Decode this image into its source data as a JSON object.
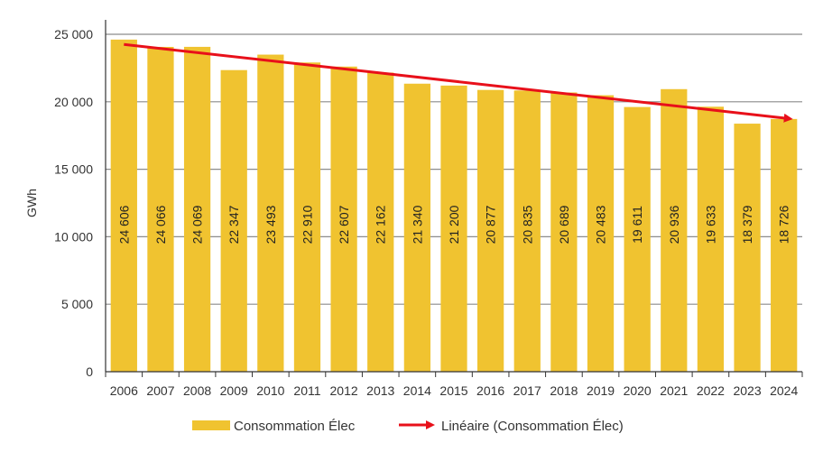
{
  "chart_data": {
    "type": "bar",
    "title": "",
    "xlabel": "",
    "ylabel": "GWh",
    "ylim": [
      0,
      25000
    ],
    "yticks": [
      0,
      5000,
      10000,
      15000,
      20000,
      25000
    ],
    "ytick_labels": [
      "0",
      "5 000",
      "10 000",
      "15 000",
      "20 000",
      "25 000"
    ],
    "grid": "horizontal",
    "legend_position": "bottom",
    "categories": [
      "2006",
      "2007",
      "2008",
      "2009",
      "2010",
      "2011",
      "2012",
      "2013",
      "2014",
      "2015",
      "2016",
      "2017",
      "2018",
      "2019",
      "2020",
      "2021",
      "2022",
      "2023",
      "2024"
    ],
    "series": [
      {
        "name": "Consommation Élec",
        "color": "#f0c330",
        "values": [
          24606,
          24066,
          24069,
          22347,
          23493,
          22910,
          22607,
          22162,
          21340,
          21200,
          20877,
          20835,
          20689,
          20483,
          19611,
          20936,
          19633,
          18379,
          18726
        ],
        "labels": [
          "24 606",
          "24 066",
          "24 069",
          "22 347",
          "23 493",
          "22 910",
          "22 607",
          "22 162",
          "21 340",
          "21 200",
          "20 877",
          "20 835",
          "20 689",
          "20 483",
          "19 611",
          "20 936",
          "19 633",
          "18 379",
          "18 726"
        ]
      }
    ],
    "trendline": {
      "name": "Linéaire (Consommation Élec)",
      "color": "#e8101a",
      "type": "linear",
      "start_value": 24250,
      "end_value": 18750
    }
  }
}
